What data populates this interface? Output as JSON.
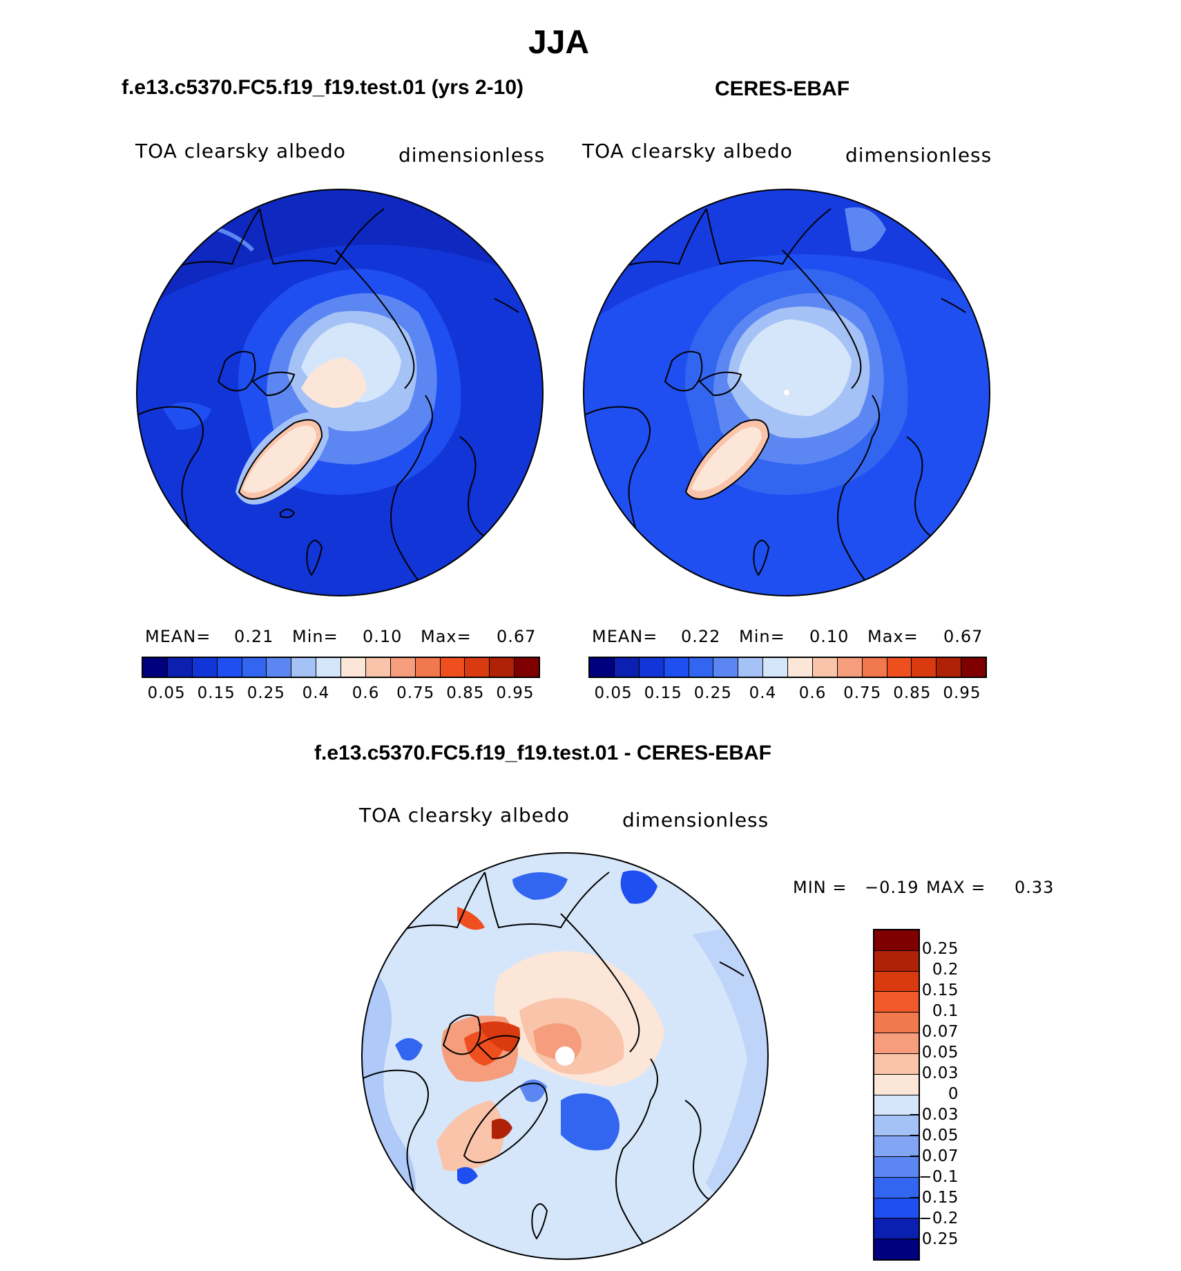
{
  "main_title": "JJA",
  "panels": [
    {
      "title": "f.e13.c5370.FC5.f19_f19.test.01 (yrs 2-10)",
      "variable": "TOA clearsky albedo",
      "units": "dimensionless",
      "stats": {
        "mean_label": "MEAN=",
        "mean": "0.21",
        "min_label": "Min=",
        "min": "0.10",
        "max_label": "Max=",
        "max": "0.67"
      }
    },
    {
      "title": "CERES-EBAF",
      "variable": "TOA clearsky albedo",
      "units": "dimensionless",
      "stats": {
        "mean_label": "MEAN=",
        "mean": "0.22",
        "min_label": "Min=",
        "min": "0.10",
        "max_label": "Max=",
        "max": "0.67"
      }
    },
    {
      "title": "f.e13.c5370.FC5.f19_f19.test.01 - CERES-EBAF",
      "variable": "TOA clearsky albedo",
      "units": "dimensionless",
      "minmax": {
        "min_label": "MIN =",
        "min": "−0.19",
        "max_label": "MAX =",
        "max": "0.33"
      }
    }
  ],
  "albedo_colorbar": {
    "colors": [
      "#00007f",
      "#0b1fb0",
      "#1235d8",
      "#1f4ff0",
      "#3366f0",
      "#5c87f2",
      "#a5c2f7",
      "#d6e6fa",
      "#fce6d8",
      "#f9c4aa",
      "#f59d7c",
      "#f2784e",
      "#ef4e1f",
      "#d93a10",
      "#b02207",
      "#7f0000"
    ],
    "labels": [
      "0.05",
      "0.15",
      "0.25",
      "0.4",
      "0.6",
      "0.75",
      "0.85",
      "0.95"
    ]
  },
  "diff_colorbar": {
    "colors": [
      "#7f0000",
      "#b02207",
      "#d93a10",
      "#f2592a",
      "#f2784e",
      "#f59d7c",
      "#f9c4aa",
      "#fce6d8",
      "#d6e6fa",
      "#a5c2f7",
      "#82a6f5",
      "#5c87f2",
      "#3366f0",
      "#1f4ff0",
      "#0b1fb0",
      "#00007f"
    ],
    "labels": [
      "0.25",
      "0.2",
      "0.15",
      "0.1",
      "0.07",
      "0.05",
      "0.03",
      "0",
      "−0.03",
      "−0.05",
      "−0.07",
      "−0.1",
      "−0.15",
      "−0.2",
      "−0.25"
    ]
  }
}
